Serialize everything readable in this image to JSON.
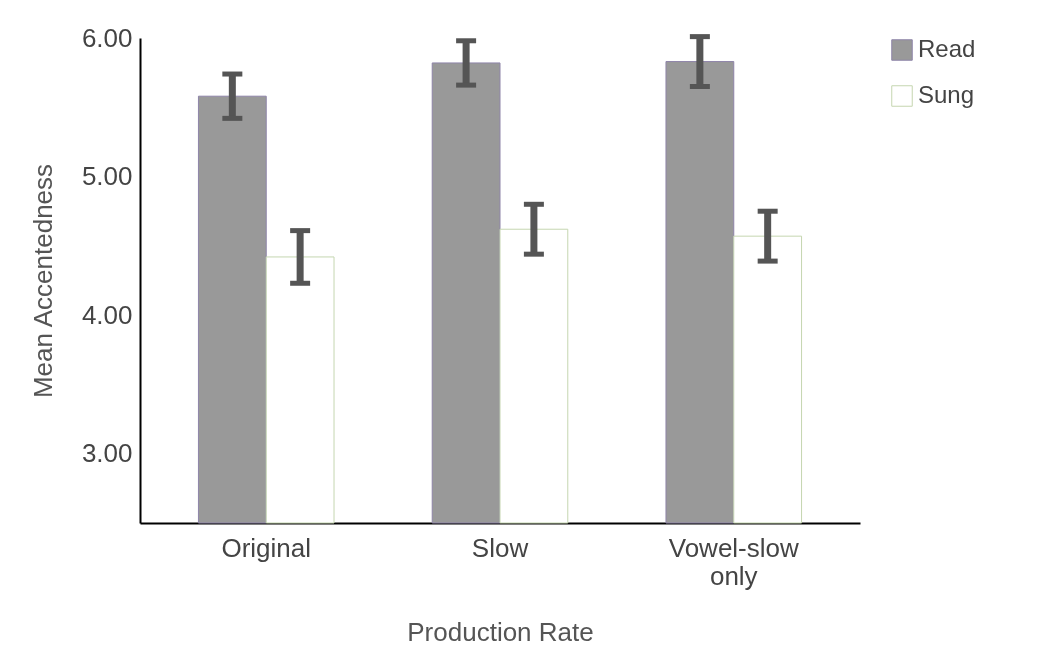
{
  "chart_data": {
    "type": "bar",
    "xlabel": "Production Rate",
    "ylabel": "Mean Accentedness",
    "categories": [
      "Original",
      "Slow",
      "Vowel-slow only"
    ],
    "series": [
      {
        "name": "Read",
        "color": "#999999",
        "values": [
          5.58,
          5.82,
          5.83
        ],
        "errors": [
          0.16,
          0.16,
          0.18
        ]
      },
      {
        "name": "Sung",
        "color": "#ffffff",
        "values": [
          4.42,
          4.62,
          4.57
        ],
        "errors": [
          0.19,
          0.18,
          0.18
        ]
      }
    ],
    "ylim": [
      2.5,
      6
    ],
    "yticks": [
      {
        "value": 3,
        "label": "3.00"
      },
      {
        "value": 4,
        "label": "4.00"
      },
      {
        "value": 5,
        "label": "5.00"
      },
      {
        "value": 6,
        "label": "6.00"
      }
    ],
    "grid": false,
    "legend": "right"
  }
}
